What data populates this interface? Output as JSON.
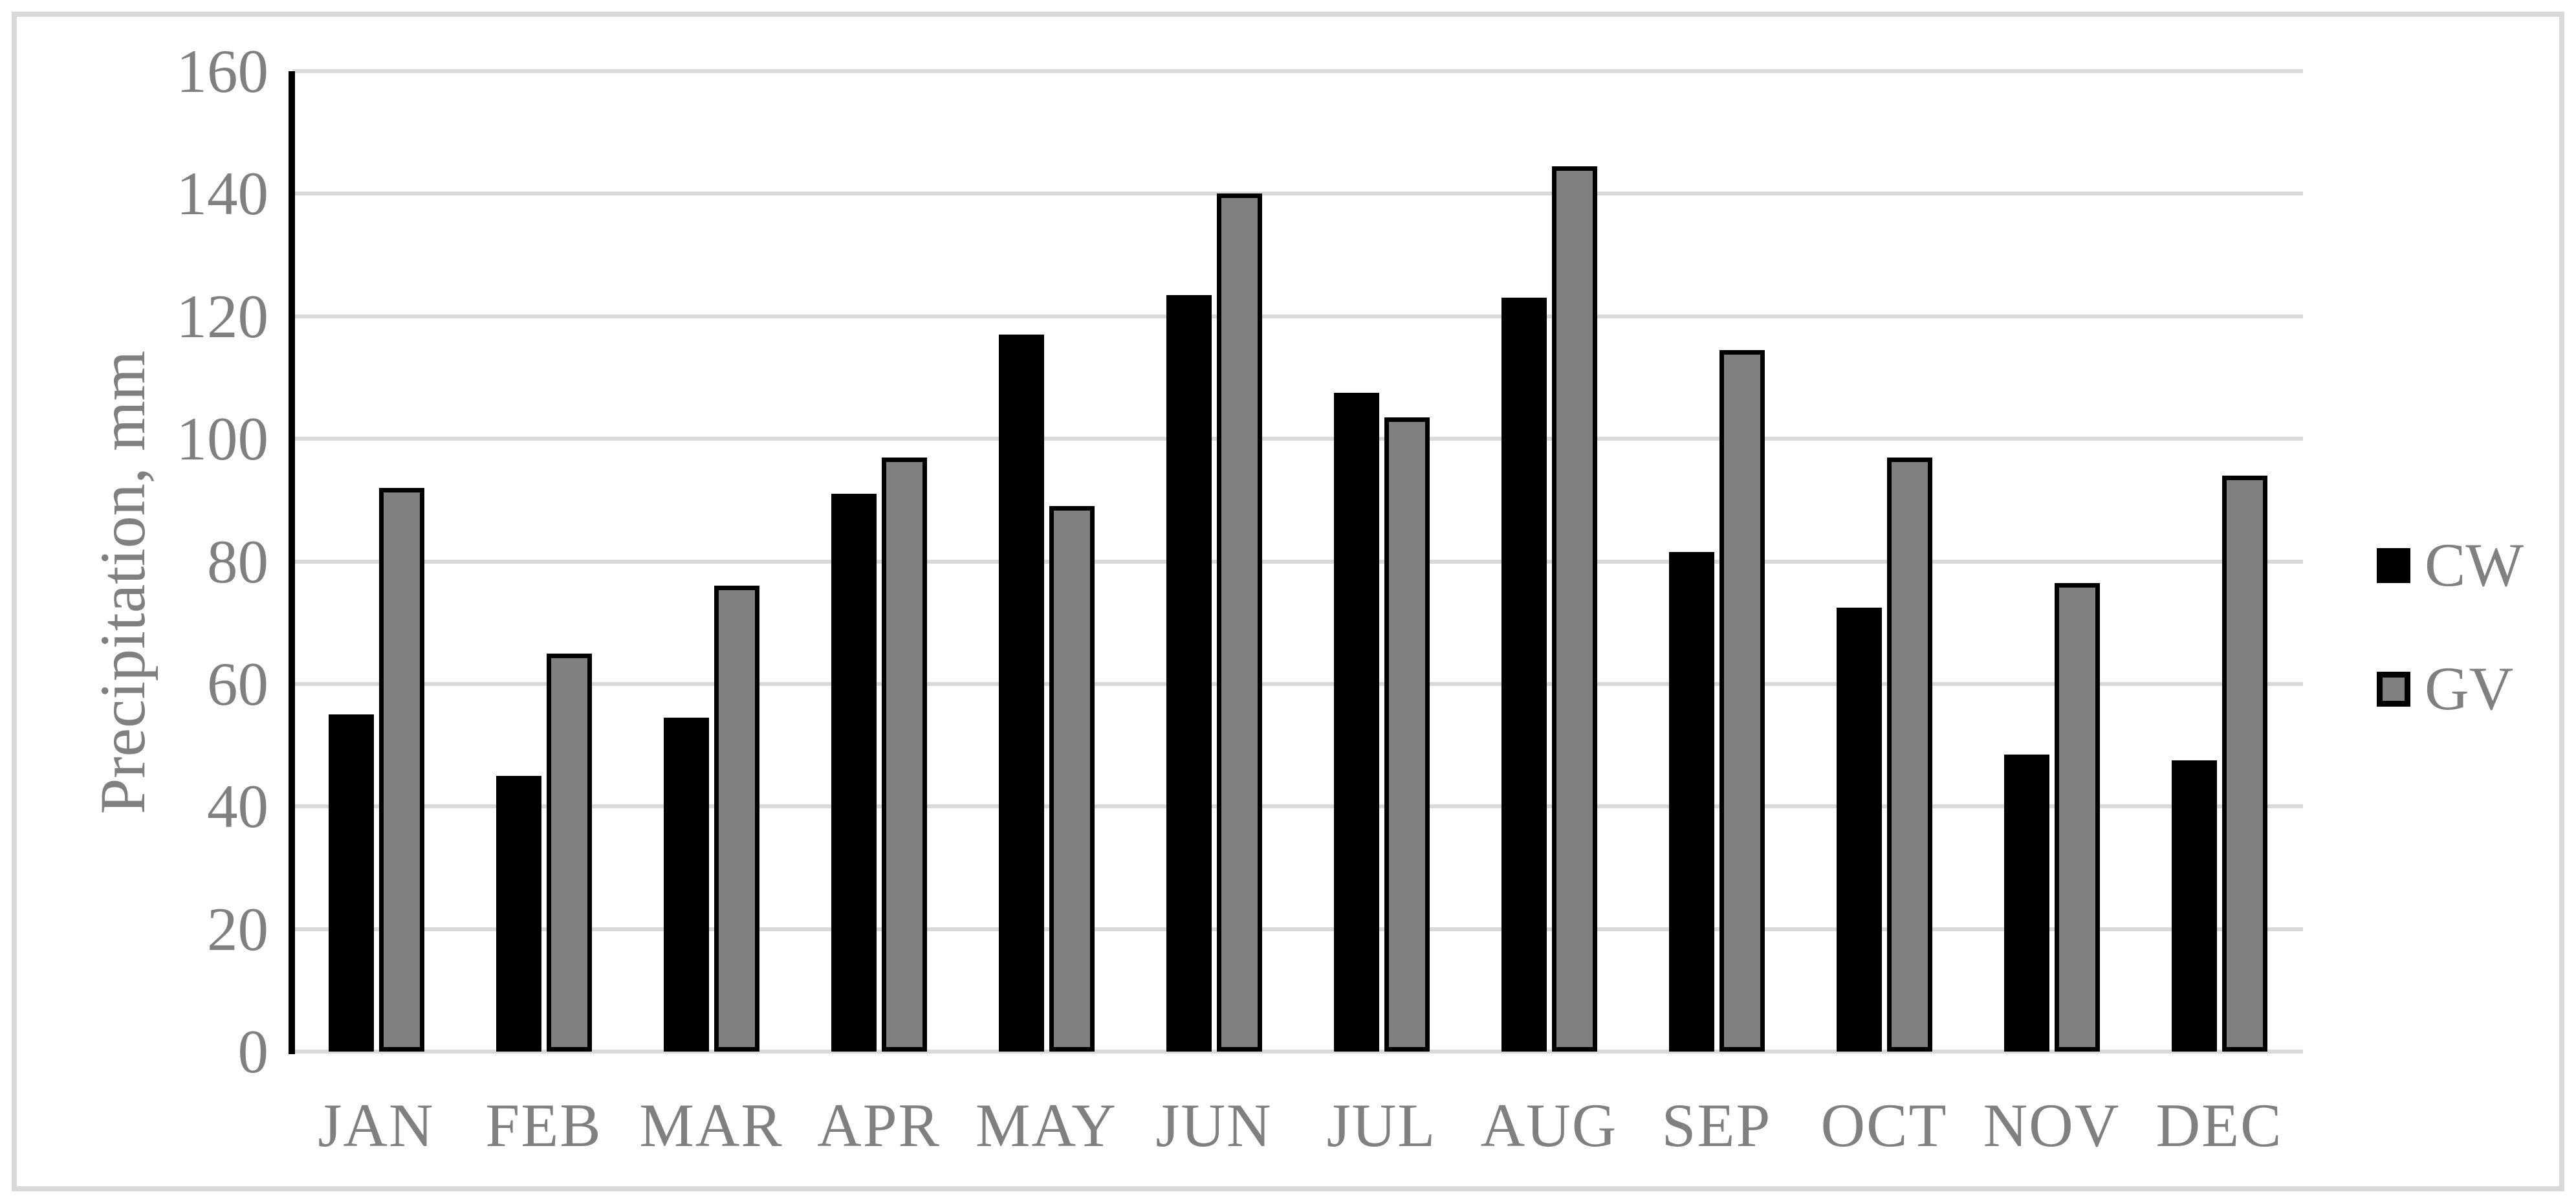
{
  "figure": {
    "type": "clustered-column-chart",
    "background": "#ffffff",
    "border_color": "#d9d9d9"
  },
  "chart_data": {
    "type": "bar",
    "title": "",
    "xlabel": "",
    "ylabel": "Precipitation, mm",
    "ylim": [
      0,
      160
    ],
    "yticks": [
      0,
      20,
      40,
      60,
      80,
      100,
      120,
      140,
      160
    ],
    "grid": "horizontal",
    "gridline_color": "#d9d9d9",
    "axis_line_color": "#000000",
    "tick_label_color": "#808080",
    "categories": [
      "JAN",
      "FEB",
      "MAR",
      "APR",
      "MAY",
      "JUN",
      "JUL",
      "AUG",
      "SEP",
      "OCT",
      "NOV",
      "DEC"
    ],
    "series": [
      {
        "name": "CW",
        "color": "#000000",
        "values": [
          55,
          45,
          54.5,
          91,
          117,
          123.5,
          107.5,
          123,
          81.5,
          72.5,
          48.5,
          47.5
        ]
      },
      {
        "name": "GV",
        "color": "#808080",
        "border_color": "#000000",
        "values": [
          92,
          65,
          76,
          97,
          89,
          140,
          103.5,
          144.5,
          114.5,
          97,
          76.5,
          94
        ]
      }
    ],
    "legend_position": "right",
    "legend_labels": [
      "CW",
      "GV"
    ]
  }
}
